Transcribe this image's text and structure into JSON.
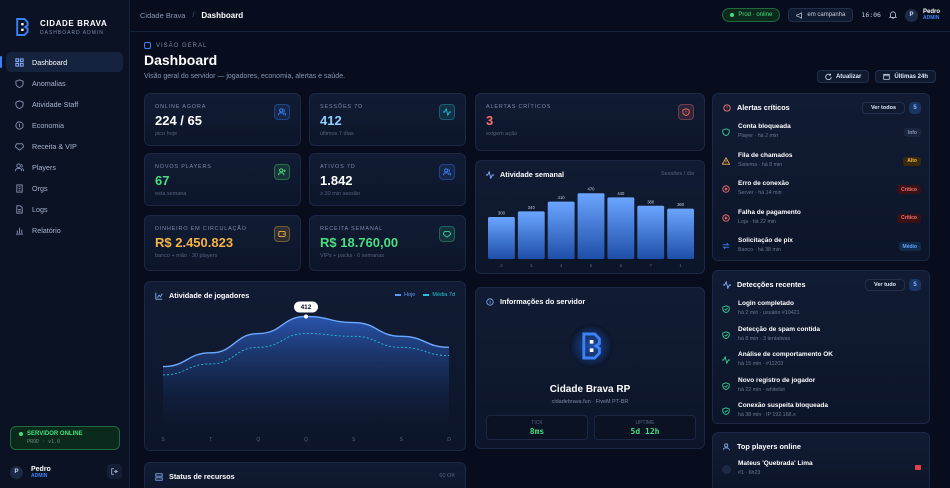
{
  "brand": {
    "name": "CIDADE BRAVA",
    "sub": "DASHBOARD ADMIN"
  },
  "nav": [
    {
      "label": "Dashboard",
      "icon": "grid-icon",
      "active": true
    },
    {
      "label": "Anomalias",
      "icon": "shield-icon"
    },
    {
      "label": "Atividade Staff",
      "icon": "shield-icon"
    },
    {
      "label": "Economia",
      "icon": "coins-icon"
    },
    {
      "label": "Receita & VIP",
      "icon": "diamond-icon"
    },
    {
      "label": "Players",
      "icon": "users-icon"
    },
    {
      "label": "Orgs",
      "icon": "building-icon"
    },
    {
      "label": "Logs",
      "icon": "file-icon"
    },
    {
      "label": "Relatório",
      "icon": "chart-icon"
    }
  ],
  "server_status": {
    "title": "SERVIDOR ONLINE",
    "sub": "PROD · v1.0"
  },
  "user": {
    "initial": "P",
    "name": "Pedro",
    "role": "ADMIN"
  },
  "topbar": {
    "crumb_root": "Cidade Brava",
    "crumb_sep": "/",
    "crumb_current": "Dashboard",
    "env": "Prod · online",
    "campaign": "em campanha",
    "clock": "16:06",
    "user_initial": "P",
    "user_name": "Pedro",
    "user_role": "ADMIN"
  },
  "header": {
    "section": "VISÃO GERAL",
    "title": "Dashboard",
    "desc": "Visão geral do servidor — jogadores, economia, alertas e saúde.",
    "refresh": "Atualizar",
    "range": "Últimas 24h"
  },
  "stats": [
    {
      "label": "ONLINE AGORA",
      "value": "224 / 65",
      "sub": "pico hoje",
      "color": "#ffffff",
      "icon": "users-icon",
      "icolor": "#3b82f6"
    },
    {
      "label": "SESSÕES 7D",
      "value": "412",
      "sub": "últimos 7 dias",
      "color": "#8fd0ff",
      "icon": "pulse-icon",
      "icolor": "#22c3d6"
    },
    {
      "label": "NOVOS PLAYERS",
      "value": "67",
      "sub": "esta semana",
      "color": "#4ade80",
      "icon": "user-plus-icon",
      "icolor": "#4ade80"
    },
    {
      "label": "ATIVOS 7D",
      "value": "1.842",
      "sub": "≥ 30 min sessão",
      "color": "#ffffff",
      "icon": "users-icon",
      "icolor": "#3b82f6"
    },
    {
      "label": "DINHEIRO EM CIRCULAÇÃO",
      "value": "R$ 2.450.823",
      "sub": "banco + mão · 30 players",
      "color": "#f5b342",
      "icon": "wallet-icon",
      "icolor": "#f5b342"
    },
    {
      "label": "RECEITA SEMANAL",
      "value": "R$ 18.760,00",
      "sub": "VIPs + packs · 6 semanas",
      "color": "#4ade80",
      "icon": "diamond-icon",
      "icolor": "#34d399"
    },
    {
      "label": "ALERTAS CRÍTICOS",
      "value": "3",
      "sub": "exigem ação",
      "color": "#f87171",
      "icon": "shield-alert-icon",
      "icolor": "#f87171"
    }
  ],
  "weekly": {
    "title": "Atividade semanal",
    "legend": "Sessões / dia"
  },
  "chart_data": [
    {
      "type": "bar",
      "title": "Atividade semanal",
      "categories": [
        "2",
        "3",
        "4",
        "5",
        "6",
        "7",
        "1"
      ],
      "values": [
        300,
        340,
        410,
        470,
        440,
        380,
        360
      ],
      "value_labels": [
        "300",
        "340",
        "410",
        "470",
        "440",
        "380",
        "360"
      ],
      "legend": "Sessões / dia"
    },
    {
      "type": "area",
      "title": "Atividade de jogadores",
      "categories": [
        "S",
        "T",
        "Q",
        "Q",
        "S",
        "S",
        "D"
      ],
      "series": [
        {
          "name": "Hoje",
          "values": [
            230,
            280,
            350,
            412,
            390,
            340,
            300
          ]
        },
        {
          "name": "Média 7d",
          "values": [
            200,
            240,
            300,
            350,
            340,
            300,
            270
          ]
        }
      ],
      "annotation": "412",
      "ylim": [
        0,
        450
      ]
    }
  ],
  "activity": {
    "title": "Atividade de jogadores",
    "legend_a": "Hoje",
    "legend_b": "Média 7d"
  },
  "server_info": {
    "title": "Informações do servidor",
    "name": "Cidade Brava RP",
    "sub": "cidadebrava.fun · FiveM PT-BR",
    "tick_label": "TICK",
    "tick": "8ms",
    "uptime_label": "UPTIME",
    "uptime": "5d 12h"
  },
  "resources": {
    "title": "Status de recursos",
    "badge": "60 OK"
  },
  "alerts": {
    "title": "Alertas críticos",
    "view": "Ver todos",
    "count": "5",
    "items": [
      {
        "title": "Conta bloqueada",
        "sub": "Player · há 2 min",
        "badge": "Info",
        "icon": "shield-icon",
        "color": "#34d399",
        "bcolor": "#8a97b3",
        "bbg": "#1a2540"
      },
      {
        "title": "Fila de chamados",
        "sub": "Sistema · há 8 min",
        "badge": "Alto",
        "icon": "warning-icon",
        "color": "#f5b342",
        "bcolor": "#f5b342",
        "bbg": "#3a2a0c"
      },
      {
        "title": "Erro de conexão",
        "sub": "Server · há 14 min",
        "badge": "Crítico",
        "icon": "x-circle-icon",
        "color": "#f87171",
        "bcolor": "#f87171",
        "bbg": "#3a1216"
      },
      {
        "title": "Falha de pagamento",
        "sub": "Loja · há 22 min",
        "badge": "Crítico",
        "icon": "x-circle-icon",
        "color": "#f87171",
        "bcolor": "#f87171",
        "bbg": "#3a1216"
      },
      {
        "title": "Solicitação de pix",
        "sub": "Banco · há 38 min",
        "badge": "Médio",
        "icon": "swap-icon",
        "color": "#3b82f6",
        "bcolor": "#60a5fa",
        "bbg": "#102a4c"
      }
    ]
  },
  "detections": {
    "title": "Detecções recentes",
    "view": "Ver tudo",
    "count": "5",
    "items": [
      {
        "title": "Login completado",
        "sub": "há 2 min · usuário #10421"
      },
      {
        "title": "Detecção de spam contida",
        "sub": "há 8 min · 3 tentativas"
      },
      {
        "title": "Análise de comportamento OK",
        "sub": "há 15 min · #11203"
      },
      {
        "title": "Novo registro de jogador",
        "sub": "há 22 min · whitelist"
      },
      {
        "title": "Conexão suspeita bloqueada",
        "sub": "há 38 min · IP 192.168.x"
      }
    ]
  },
  "top_players": {
    "title": "Top players online",
    "items": [
      {
        "name": "Mateus 'Quebrada' Lima",
        "sub": "#1 · 6h23"
      }
    ]
  }
}
